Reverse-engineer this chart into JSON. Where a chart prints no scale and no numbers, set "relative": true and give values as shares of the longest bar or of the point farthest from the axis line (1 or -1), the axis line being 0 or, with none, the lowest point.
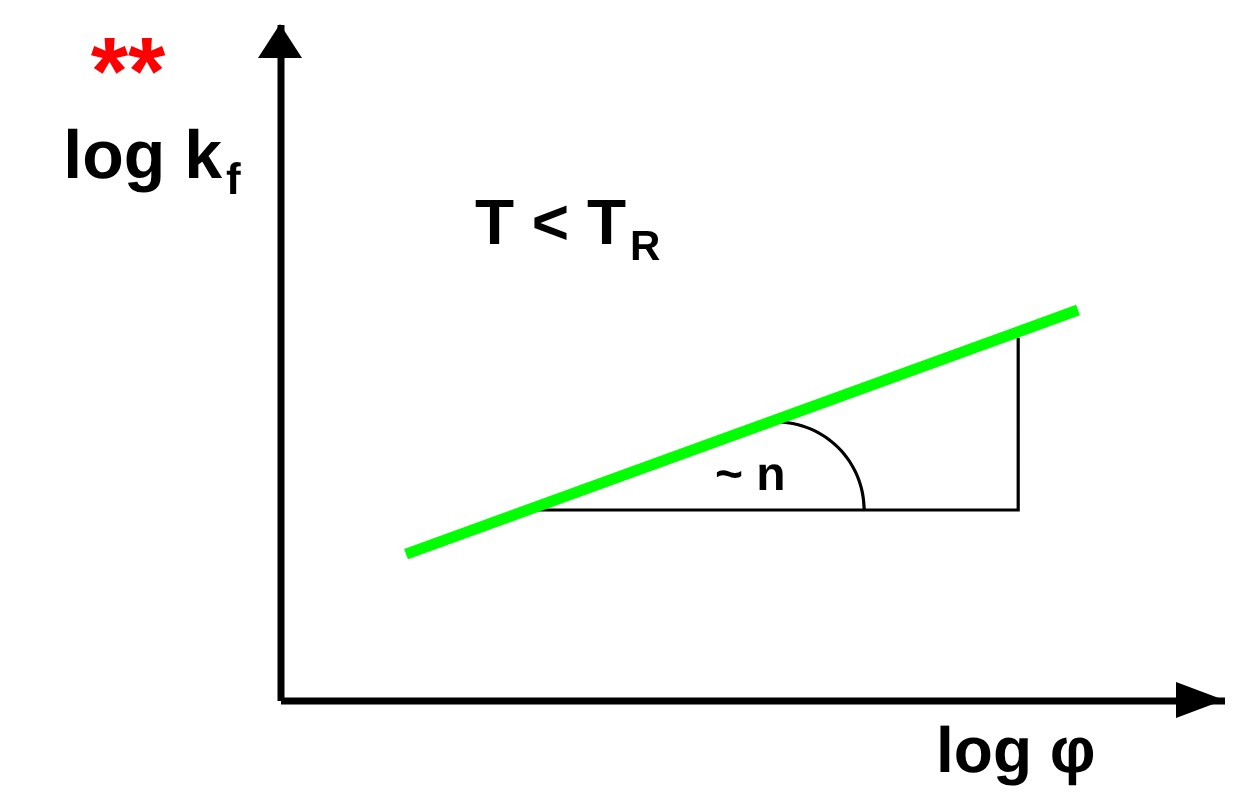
{
  "chart_data": {
    "type": "line",
    "relative": true,
    "tick_labels": false,
    "xlabel": "log φ",
    "ylabel": "log k$_{f}$",
    "annotations": [
      "**",
      "T < T$_{R}$",
      "~ n"
    ],
    "categories": [
      null,
      null
    ],
    "series": [
      {
        "color": "#00ff00",
        "values": [
          0.374,
          1
        ]
      }
    ]
  }
}
